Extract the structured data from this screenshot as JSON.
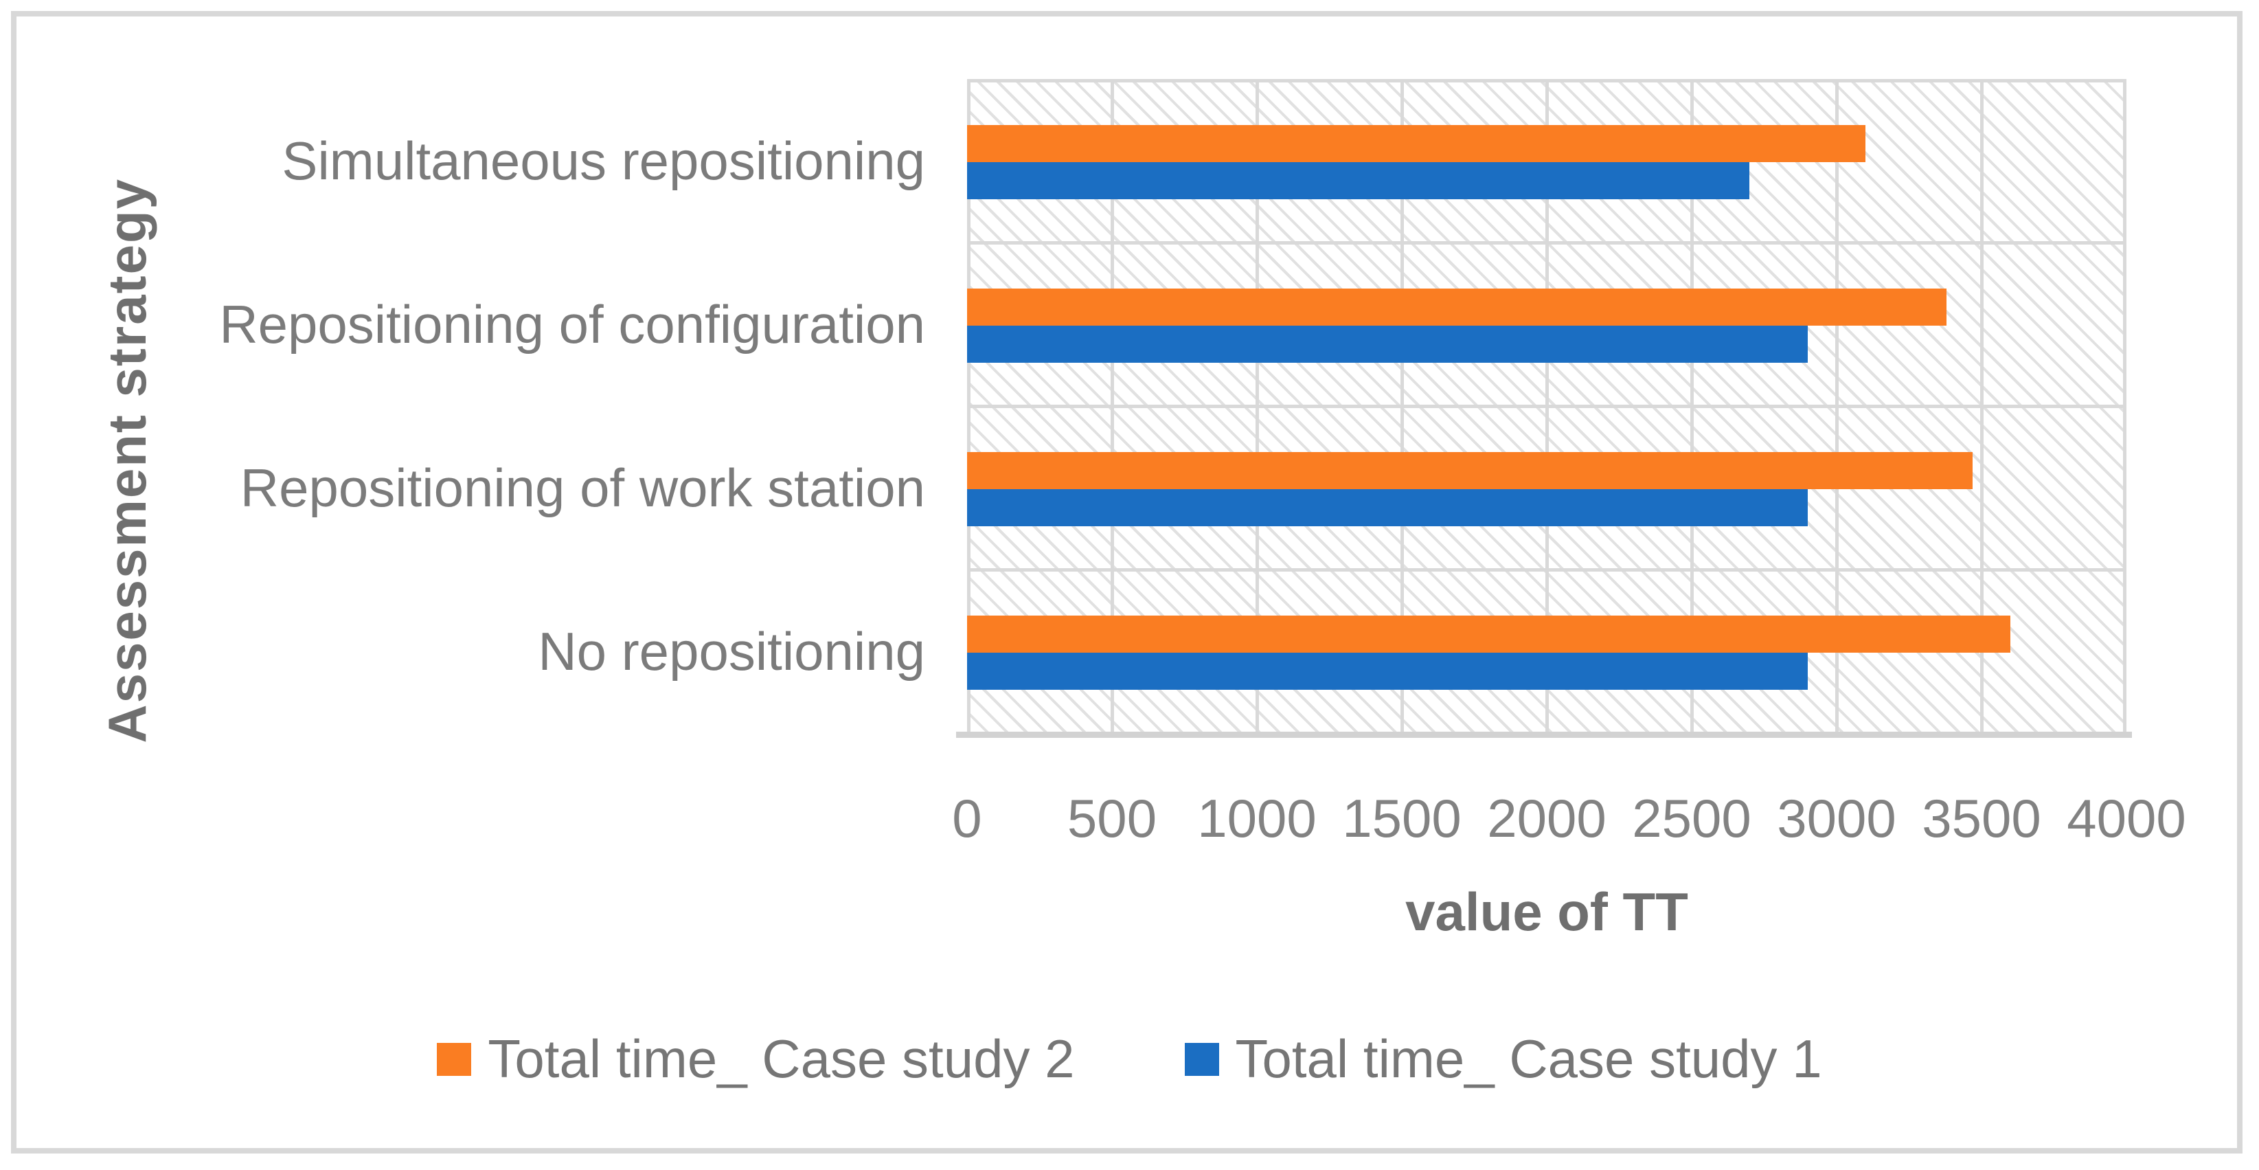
{
  "chart_data": {
    "type": "bar",
    "orientation": "horizontal",
    "title": "",
    "xlabel": "value of TT",
    "ylabel": "Assessment strategy",
    "categories": [
      "Simultaneous repositioning",
      "Repositioning of configuration",
      "Repositioning of work station",
      "No repositioning"
    ],
    "series": [
      {
        "name": "Total time_ Case study 2",
        "color": "#fa7d22",
        "values": [
          3100,
          3380,
          3470,
          3600
        ]
      },
      {
        "name": "Total time_ Case study 1",
        "color": "#1b6ec2",
        "values": [
          2700,
          2900,
          2900,
          2900
        ]
      }
    ],
    "x_ticks": [
      "0",
      "500",
      "1000",
      "1500",
      "2000",
      "2500",
      "3000",
      "3500",
      "4000"
    ],
    "xlim": [
      0,
      4000
    ],
    "grid": true,
    "legend_position": "bottom",
    "plot_background": "light-diagonal-hatch"
  },
  "palette": {
    "gridline": "#d9d9d9",
    "axis_line": "#d2d2d2",
    "hatch": "#e1e1e1",
    "frame_border": "#d8d8d8",
    "text_gray": "#7b7b7b"
  }
}
